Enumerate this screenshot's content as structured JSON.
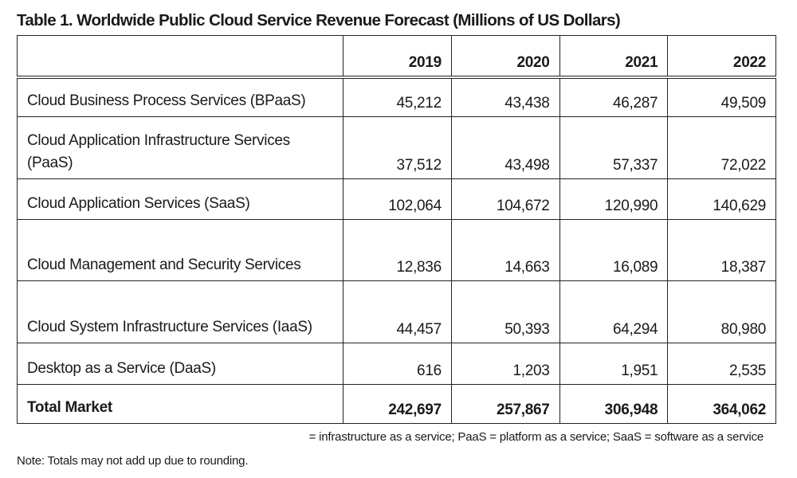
{
  "title": "Table 1. Worldwide Public Cloud Service Revenue Forecast (Millions of US Dollars)",
  "table": {
    "columns": [
      "",
      "2019",
      "2020",
      "2021",
      "2022"
    ],
    "rows": [
      {
        "label": "Cloud Business Process Services (BPaaS)",
        "values": [
          "45,212",
          "43,438",
          "46,287",
          "49,509"
        ]
      },
      {
        "label": "Cloud Application Infrastructure Services (PaaS)",
        "values": [
          "37,512",
          "43,498",
          "57,337",
          "72,022"
        ]
      },
      {
        "label": "Cloud Application Services (SaaS)",
        "values": [
          "102,064",
          "104,672",
          "120,990",
          "140,629"
        ]
      },
      {
        "label": "Cloud Management and Security Services",
        "values": [
          "12,836",
          "14,663",
          "16,089",
          "18,387"
        ]
      },
      {
        "label": "Cloud System Infrastructure Services (IaaS)",
        "values": [
          "44,457",
          "50,393",
          "64,294",
          "80,980"
        ]
      },
      {
        "label": "Desktop as a Service (DaaS)",
        "values": [
          "616",
          "1,203",
          "1,951",
          "2,535"
        ]
      }
    ],
    "total": {
      "label": "Total Market",
      "values": [
        "242,697",
        "257,867",
        "306,948",
        "364,062"
      ]
    }
  },
  "footnote": "= infrastructure as a service; PaaS = platform as a service; SaaS = software as a service",
  "note": "Note: Totals may not add up due to rounding."
}
